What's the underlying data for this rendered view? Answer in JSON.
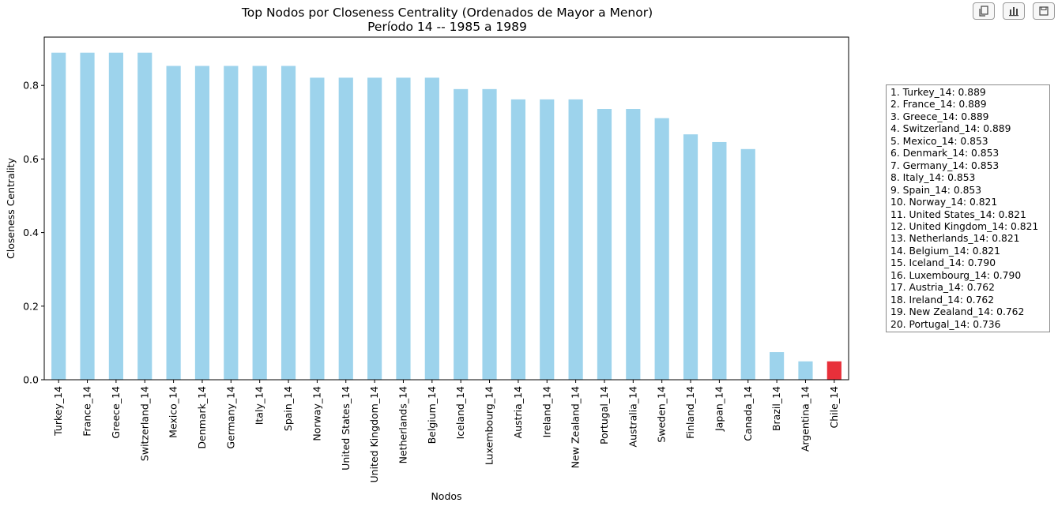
{
  "toolbar": {
    "buttons": [
      {
        "name": "copy-icon",
        "label": "copy"
      },
      {
        "name": "bar-chart-icon",
        "label": "chart"
      },
      {
        "name": "save-icon",
        "label": "save"
      }
    ]
  },
  "chart_data": {
    "type": "bar",
    "title": "Top Nodos por Closeness Centrality (Ordenados de Mayor a Menor)",
    "subtitle": "Período 14 -- 1985 a 1989",
    "xlabel": "Nodos",
    "ylabel": "Closeness Centrality",
    "ylim": [
      0,
      0.9
    ],
    "yticks": [
      0.0,
      0.2,
      0.4,
      0.6,
      0.8
    ],
    "grid": false,
    "categories": [
      "Turkey_14",
      "France_14",
      "Greece_14",
      "Switzerland_14",
      "Mexico_14",
      "Denmark_14",
      "Germany_14",
      "Italy_14",
      "Spain_14",
      "Norway_14",
      "United States_14",
      "United Kingdom_14",
      "Netherlands_14",
      "Belgium_14",
      "Iceland_14",
      "Luxembourg_14",
      "Austria_14",
      "Ireland_14",
      "New Zealand_14",
      "Portugal_14",
      "Australia_14",
      "Sweden_14",
      "Finland_14",
      "Japan_14",
      "Canada_14",
      "Brazil_14",
      "Argentina_14",
      "Chile_14"
    ],
    "values": [
      0.889,
      0.889,
      0.889,
      0.889,
      0.853,
      0.853,
      0.853,
      0.853,
      0.853,
      0.821,
      0.821,
      0.821,
      0.821,
      0.821,
      0.79,
      0.79,
      0.762,
      0.762,
      0.762,
      0.736,
      0.736,
      0.711,
      0.667,
      0.646,
      0.627,
      0.075,
      0.05,
      0.05
    ],
    "bar_color": "#9dd3ec",
    "highlight_color": "#e8303a",
    "highlight_category": "Chile_14",
    "legend_placement": "right",
    "legend_entries": [
      "1. Turkey_14: 0.889",
      "2. France_14: 0.889",
      "3. Greece_14: 0.889",
      "4. Switzerland_14: 0.889",
      "5. Mexico_14: 0.853",
      "6. Denmark_14: 0.853",
      "7. Germany_14: 0.853",
      "8. Italy_14: 0.853",
      "9. Spain_14: 0.853",
      "10. Norway_14: 0.821",
      "11. United States_14: 0.821",
      "12. United Kingdom_14: 0.821",
      "13. Netherlands_14: 0.821",
      "14. Belgium_14: 0.821",
      "15. Iceland_14: 0.790",
      "16. Luxembourg_14: 0.790",
      "17. Austria_14: 0.762",
      "18. Ireland_14: 0.762",
      "19. New Zealand_14: 0.762",
      "20. Portugal_14: 0.736"
    ]
  }
}
